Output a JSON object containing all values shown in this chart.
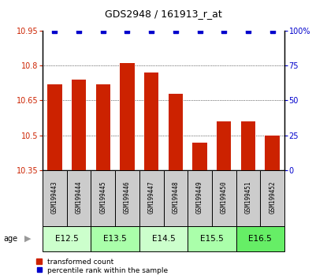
{
  "title": "GDS2948 / 161913_r_at",
  "samples": [
    "GSM199443",
    "GSM199444",
    "GSM199445",
    "GSM199446",
    "GSM199447",
    "GSM199448",
    "GSM199449",
    "GSM199450",
    "GSM199451",
    "GSM199452"
  ],
  "bar_values": [
    10.72,
    10.74,
    10.72,
    10.81,
    10.77,
    10.68,
    10.47,
    10.56,
    10.56,
    10.5
  ],
  "percentile_values": [
    100,
    100,
    100,
    100,
    100,
    100,
    100,
    100,
    100,
    100
  ],
  "bar_color": "#cc2200",
  "percentile_color": "#0000cc",
  "ylim_left": [
    10.35,
    10.95
  ],
  "ylim_right": [
    0,
    100
  ],
  "yticks_left": [
    10.35,
    10.5,
    10.65,
    10.8,
    10.95
  ],
  "yticks_right": [
    0,
    25,
    50,
    75,
    100
  ],
  "age_groups": [
    {
      "label": "E12.5",
      "indices": [
        0,
        1
      ],
      "color": "#ccffcc"
    },
    {
      "label": "E13.5",
      "indices": [
        2,
        3
      ],
      "color": "#aaffaa"
    },
    {
      "label": "E14.5",
      "indices": [
        4,
        5
      ],
      "color": "#ccffcc"
    },
    {
      "label": "E15.5",
      "indices": [
        6,
        7
      ],
      "color": "#aaffaa"
    },
    {
      "label": "E16.5",
      "indices": [
        8,
        9
      ],
      "color": "#66ee66"
    }
  ],
  "legend_bar_label": "transformed count",
  "legend_pct_label": "percentile rank within the sample",
  "age_label": "age",
  "bar_bottom": 10.35,
  "sample_box_color": "#cccccc",
  "background_color": "#ffffff"
}
